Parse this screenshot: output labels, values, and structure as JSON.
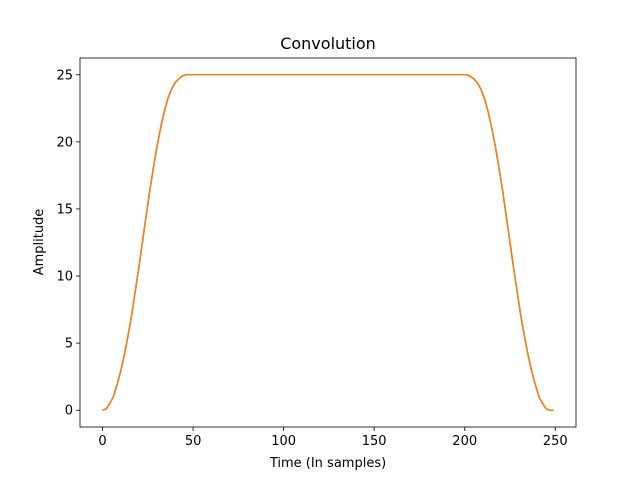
{
  "chart_data": {
    "type": "line",
    "title": "Convolution",
    "xlabel": "Time (In samples)",
    "ylabel": "Amplitude",
    "xlim": [
      -12.45,
      261.45
    ],
    "ylim": [
      -1.25,
      26.25
    ],
    "xticks": [
      0,
      50,
      100,
      150,
      200,
      250
    ],
    "yticks": [
      0,
      5,
      10,
      15,
      20,
      25
    ],
    "grid": false,
    "series": [
      {
        "color": "#1f77b4",
        "x": [
          0,
          2,
          4,
          6,
          8,
          10,
          12,
          14,
          16,
          18,
          20,
          22,
          24,
          26,
          28,
          30,
          32,
          34,
          36,
          38,
          40,
          42,
          44,
          46,
          48,
          50,
          60,
          80,
          100,
          120,
          140,
          160,
          180,
          199,
          201,
          203,
          205,
          207,
          209,
          211,
          213,
          215,
          217,
          219,
          221,
          223,
          225,
          227,
          229,
          231,
          233,
          235,
          237,
          239,
          241,
          243,
          245,
          247,
          249
        ],
        "y": [
          0,
          0.1,
          0.5,
          1.0,
          1.9,
          2.9,
          4.1,
          5.5,
          7.0,
          8.8,
          10.6,
          12.5,
          14.4,
          16.3,
          18.0,
          19.6,
          21.0,
          22.2,
          23.2,
          23.9,
          24.4,
          24.7,
          24.9,
          25.0,
          25.0,
          25.0,
          25.0,
          25.0,
          25.0,
          25.0,
          25.0,
          25.0,
          25.0,
          25.0,
          25.0,
          24.9,
          24.7,
          24.4,
          23.9,
          23.2,
          22.2,
          21.0,
          19.6,
          18.0,
          16.3,
          14.4,
          12.5,
          10.6,
          8.8,
          7.0,
          5.5,
          4.1,
          2.9,
          1.9,
          1.0,
          0.5,
          0.1,
          0.0,
          0.0
        ]
      },
      {
        "color": "#ff7f0e",
        "x": [
          0,
          2,
          4,
          6,
          8,
          10,
          12,
          14,
          16,
          18,
          20,
          22,
          24,
          26,
          28,
          30,
          32,
          34,
          36,
          38,
          40,
          42,
          44,
          46,
          48,
          50,
          60,
          80,
          100,
          120,
          140,
          160,
          180,
          199,
          201,
          203,
          205,
          207,
          209,
          211,
          213,
          215,
          217,
          219,
          221,
          223,
          225,
          227,
          229,
          231,
          233,
          235,
          237,
          239,
          241,
          243,
          245,
          247,
          249
        ],
        "y": [
          0,
          0.1,
          0.5,
          1.0,
          1.9,
          2.9,
          4.1,
          5.5,
          7.0,
          8.8,
          10.6,
          12.5,
          14.4,
          16.3,
          18.0,
          19.6,
          21.0,
          22.2,
          23.2,
          23.9,
          24.4,
          24.7,
          24.9,
          25.0,
          25.0,
          25.0,
          25.0,
          25.0,
          25.0,
          25.0,
          25.0,
          25.0,
          25.0,
          25.0,
          25.0,
          24.9,
          24.7,
          24.4,
          23.9,
          23.2,
          22.2,
          21.0,
          19.6,
          18.0,
          16.3,
          14.4,
          12.5,
          10.6,
          8.8,
          7.0,
          5.5,
          4.1,
          2.9,
          1.9,
          1.0,
          0.5,
          0.1,
          0.0,
          0.0
        ]
      }
    ]
  }
}
